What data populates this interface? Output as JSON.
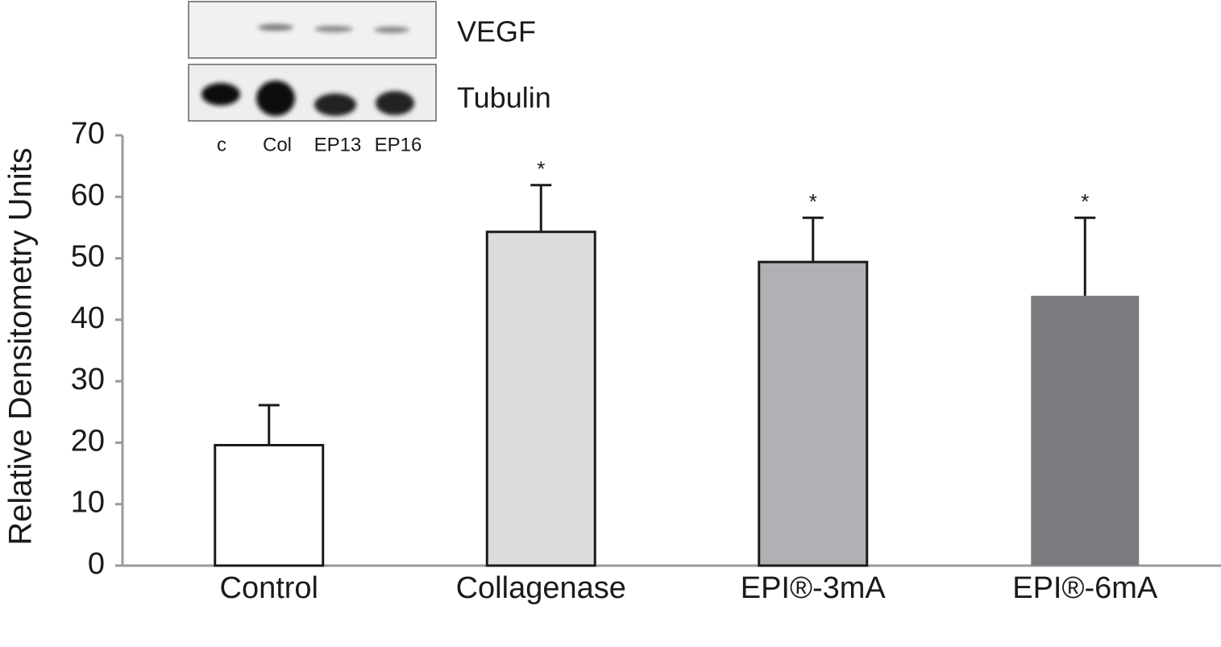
{
  "chart_data": {
    "type": "bar",
    "y_label": "Relative Densitometry Units",
    "categories": [
      "Control",
      "Collagenase",
      "EPI®-3mA",
      "EPI®-6mA"
    ],
    "values": [
      19.6,
      54.3,
      49.4,
      43.9
    ],
    "errors": [
      6.5,
      7.6,
      7.2,
      12.7
    ],
    "significance_markers": [
      null,
      "*",
      "*",
      "*"
    ],
    "colors": [
      "#ffffff",
      "#dcdcde",
      "#b0b1b4",
      "#7a7b7e"
    ],
    "edgecolors": [
      "#1a1a1a",
      "#1a1a1a",
      "#1a1a1a",
      "none"
    ],
    "ylim": [
      0,
      70
    ],
    "yticks": [
      0,
      10,
      20,
      30,
      40,
      50,
      60,
      70
    ],
    "inset": {
      "bands": [
        "VEGF",
        "Tubulin"
      ],
      "lanes": [
        "c",
        "Col",
        "EP13",
        "EP16"
      ]
    }
  }
}
